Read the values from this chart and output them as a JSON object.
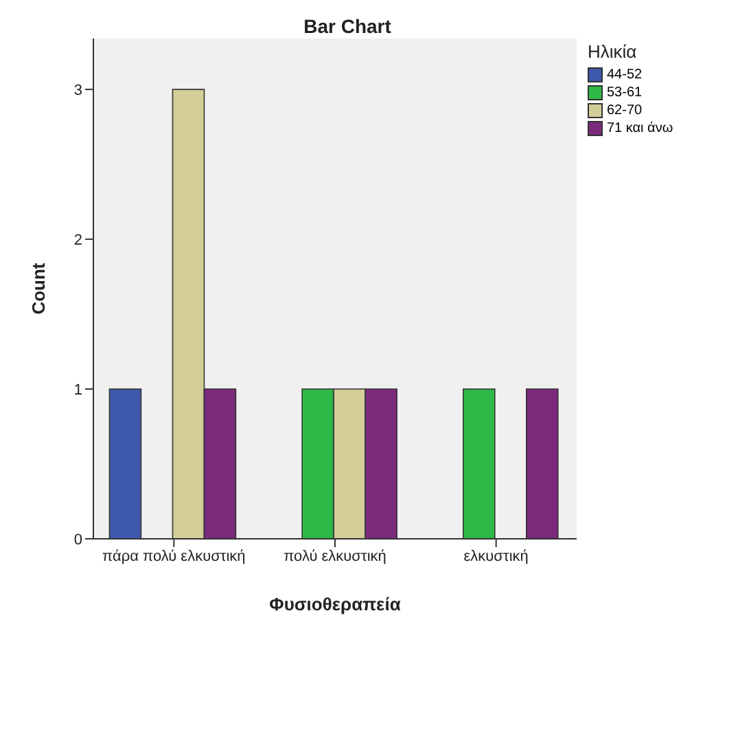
{
  "chart_data": {
    "type": "bar",
    "title": "Bar Chart",
    "xlabel": "Φυσιοθεραπεία",
    "ylabel": "Count",
    "legend_title": "Ηλικία",
    "categories": [
      "πάρα πολύ ελκυστική",
      "πολύ ελκυστική",
      "ελκυστική"
    ],
    "series": [
      {
        "name": "44-52",
        "color": "#3e58ac",
        "values": [
          1,
          null,
          null
        ]
      },
      {
        "name": "53-61",
        "color": "#2eb848",
        "values": [
          null,
          1,
          1
        ]
      },
      {
        "name": "62-70",
        "color": "#d3ce97",
        "values": [
          3,
          1,
          null
        ]
      },
      {
        "name": "71 και άνω",
        "color": "#7b2a7c",
        "values": [
          1,
          1,
          1
        ]
      }
    ],
    "ylim": [
      0,
      3.34
    ],
    "yticks": [
      0,
      1,
      2,
      3
    ],
    "grid": false,
    "legend": "top right"
  }
}
